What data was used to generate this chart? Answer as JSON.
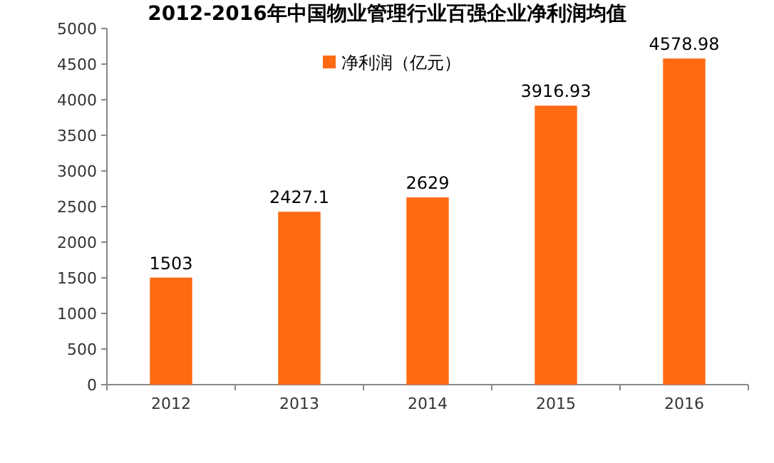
{
  "chart_data": {
    "type": "bar",
    "title": "2012-2016年中国物业管理行业百强企业净利润均值",
    "categories": [
      "2012",
      "2013",
      "2014",
      "2015",
      "2016"
    ],
    "series": [
      {
        "name": "净利润（亿元）",
        "color": "#ff6a13",
        "values": [
          1503,
          2427.1,
          2629,
          3916.93,
          4578.98
        ]
      }
    ],
    "ylim": [
      0,
      5000
    ],
    "yticks": [
      0,
      500,
      1000,
      1500,
      2000,
      2500,
      3000,
      3500,
      4000,
      4500,
      5000
    ],
    "data_labels": true,
    "legend": "top"
  }
}
